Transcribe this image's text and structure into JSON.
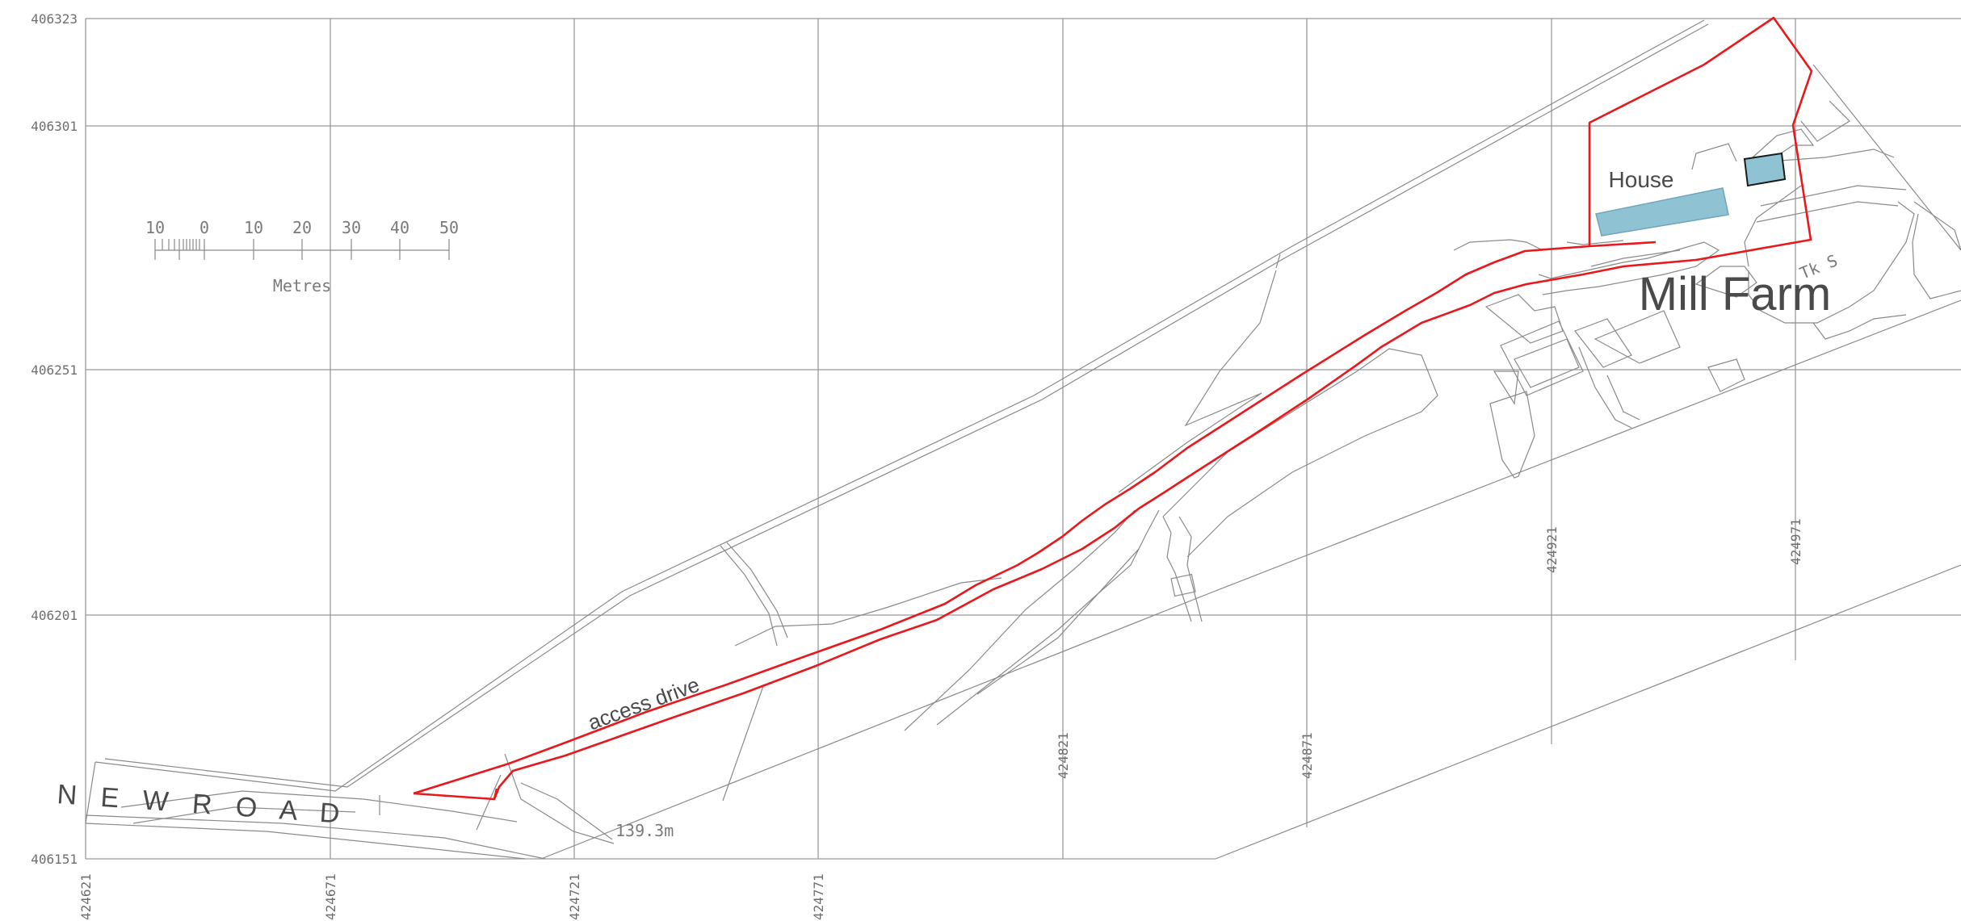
{
  "map": {
    "coords": {
      "northing": [
        "406323",
        "406301",
        "406251",
        "406201",
        "406151"
      ],
      "easting": [
        "424621",
        "424671",
        "424721",
        "424771",
        "424821",
        "424871",
        "424921",
        "424971"
      ]
    },
    "scale_bar": {
      "ticks": [
        "10",
        "0",
        "10",
        "20",
        "30",
        "40",
        "50"
      ],
      "unit": "Metres"
    },
    "labels": {
      "site_name": "Mill Farm",
      "house": "House",
      "road": "N E W  R O A D",
      "access": "access drive",
      "spot_height": "139.3m",
      "tank": "Tk S"
    },
    "colors": {
      "site_boundary": "#e8181c",
      "building_fill": "#8fc3d4",
      "linework": "#8a8a8a"
    }
  }
}
